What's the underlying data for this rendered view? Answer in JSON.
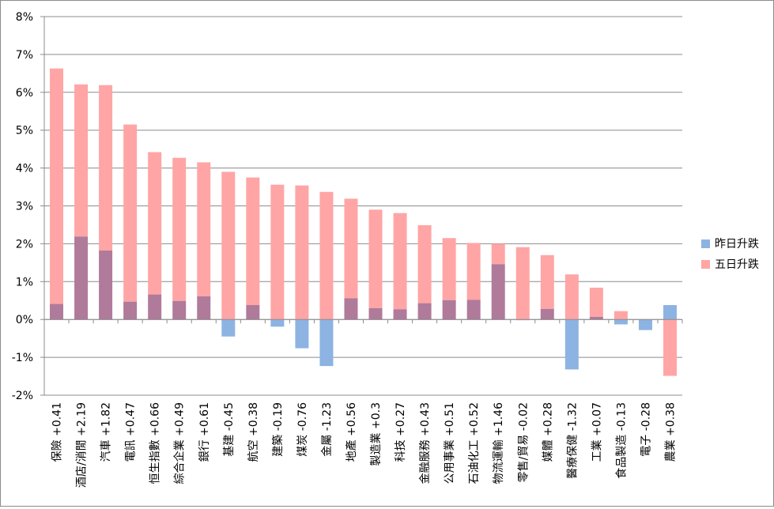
{
  "chart_data": {
    "type": "bar",
    "categories": [
      "保險 +0.41",
      "酒店/消閒 +2.19",
      "汽車 +1.82",
      "電訊 +0.47",
      "恒生指數 +0.66",
      "綜合企業 +0.49",
      "銀行 +0.61",
      "基建 -0.45",
      "航空 +0.38",
      "建築 -0.19",
      "煤炭 -0.76",
      "金屬 -1.23",
      "地產 +0.56",
      "製造業 +0.3",
      "科技 +0.27",
      "金融服務 +0.43",
      "公用事業 +0.51",
      "石油化工 +0.52",
      "物流運輸 +1.46",
      "零售/貿易 -0.02",
      "媒體 +0.28",
      "醫療保健 -1.32",
      "工業 +0.07",
      "食品製造 -0.13",
      "電子 -0.28",
      "農業 +0.38"
    ],
    "series": [
      {
        "name": "昨日升跌",
        "color": "#8db3e2",
        "values": [
          0.41,
          2.19,
          1.82,
          0.47,
          0.66,
          0.49,
          0.61,
          -0.45,
          0.38,
          -0.19,
          -0.76,
          -1.23,
          0.56,
          0.3,
          0.27,
          0.43,
          0.51,
          0.52,
          1.46,
          -0.02,
          0.28,
          -1.32,
          0.07,
          -0.13,
          -0.28,
          0.38
        ]
      },
      {
        "name": "五日升跌",
        "color": "#ffa5a5",
        "values": [
          6.63,
          6.21,
          6.19,
          5.15,
          4.42,
          4.27,
          4.15,
          3.9,
          3.75,
          3.56,
          3.54,
          3.37,
          3.19,
          2.9,
          2.81,
          2.49,
          2.15,
          2.02,
          2.0,
          1.91,
          1.7,
          1.19,
          0.84,
          0.22,
          0.0,
          -1.49
        ]
      }
    ],
    "overlap_color": "#b07a9a",
    "ylim": [
      -2,
      8
    ],
    "yticks": [
      -2,
      -1,
      0,
      1,
      2,
      3,
      4,
      5,
      6,
      7,
      8
    ],
    "ytick_labels": [
      "-2%",
      "-1%",
      "0%",
      "1%",
      "2%",
      "3%",
      "4%",
      "5%",
      "6%",
      "7%",
      "8%"
    ],
    "grid": true,
    "legend_position": "right"
  }
}
